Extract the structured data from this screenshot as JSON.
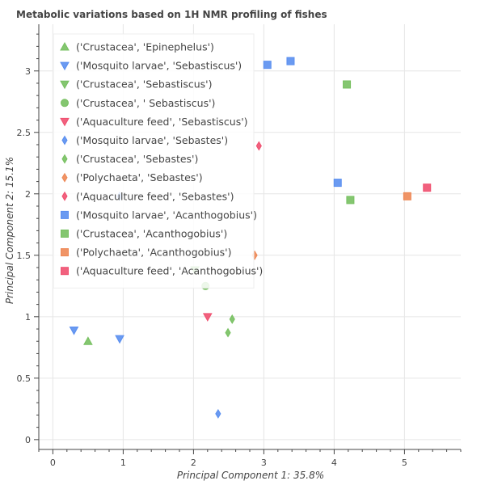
{
  "chart_data": {
    "type": "scatter",
    "title": "Metabolic variations based on 1H NMR profiling of fishes",
    "xlabel": "Principal Component 1: 35.8%",
    "ylabel": "Principal Component 2: 15.1%",
    "xlim": [
      -0.2,
      5.8
    ],
    "ylim": [
      -0.08,
      3.38
    ],
    "x_ticks": [
      0,
      1,
      2,
      3,
      4,
      5
    ],
    "y_ticks": [
      0,
      0.5,
      1,
      1.5,
      2,
      2.5,
      3
    ],
    "x_tick_labels": [
      "0",
      "1",
      "2",
      "3",
      "4",
      "5"
    ],
    "y_tick_labels": [
      "0",
      "0.5",
      "1",
      "1.5",
      "2",
      "2.5",
      "3"
    ],
    "grid": true,
    "legend_position": "top-left",
    "series": [
      {
        "name": "('Crustacea', 'Epinephelus')",
        "marker": "triangle",
        "color": "#77c060",
        "points": [
          [
            0.5,
            0.8
          ]
        ]
      },
      {
        "name": "('Mosquito larvae', 'Sebastiscus')",
        "marker": "inverted_triangle",
        "color": "#5a8ff0",
        "points": [
          [
            0.3,
            0.89
          ],
          [
            0.95,
            0.82
          ]
        ]
      },
      {
        "name": "('Crustacea', 'Sebastiscus')",
        "marker": "inverted_triangle",
        "color": "#77c060",
        "points": [
          [
            2.02,
            1.38
          ]
        ]
      },
      {
        "name": "('Crustacea', ' Sebastiscus')",
        "marker": "circle",
        "color": "#77c060",
        "points": [
          [
            2.17,
            1.25
          ]
        ]
      },
      {
        "name": "('Aquaculture feed', 'Sebastiscus')",
        "marker": "inverted_triangle",
        "color": "#f05070",
        "points": [
          [
            2.2,
            1.0
          ]
        ]
      },
      {
        "name": "('Mosquito larvae', 'Sebastes')",
        "marker": "diamond",
        "color": "#5a8ff0",
        "points": [
          [
            2.35,
            0.21
          ],
          [
            0.95,
            1.98
          ]
        ]
      },
      {
        "name": "('Crustacea', 'Sebastes')",
        "marker": "diamond",
        "color": "#77c060",
        "points": [
          [
            2.49,
            0.87
          ],
          [
            2.55,
            0.98
          ]
        ]
      },
      {
        "name": "('Polychaeta', 'Sebastes')",
        "marker": "diamond",
        "color": "#ee8855",
        "points": [
          [
            2.87,
            1.5
          ]
        ]
      },
      {
        "name": "('Aquaculture feed', 'Sebastes')",
        "marker": "diamond",
        "color": "#f05070",
        "points": [
          [
            2.93,
            2.39
          ]
        ]
      },
      {
        "name": "('Mosquito larvae', 'Acanthogobius')",
        "marker": "square",
        "color": "#5a8ff0",
        "points": [
          [
            3.05,
            3.05
          ],
          [
            3.38,
            3.08
          ],
          [
            4.05,
            2.09
          ]
        ]
      },
      {
        "name": "('Crustacea', 'Acanthogobius')",
        "marker": "square",
        "color": "#77c060",
        "points": [
          [
            4.18,
            2.89
          ],
          [
            4.23,
            1.95
          ]
        ]
      },
      {
        "name": "('Polychaeta', 'Acanthogobius')",
        "marker": "square",
        "color": "#ee8855",
        "points": [
          [
            5.04,
            1.98
          ]
        ]
      },
      {
        "name": "('Aquaculture feed', 'Acanthogobius')",
        "marker": "square",
        "color": "#f05070",
        "points": [
          [
            5.32,
            2.05
          ]
        ]
      }
    ]
  }
}
